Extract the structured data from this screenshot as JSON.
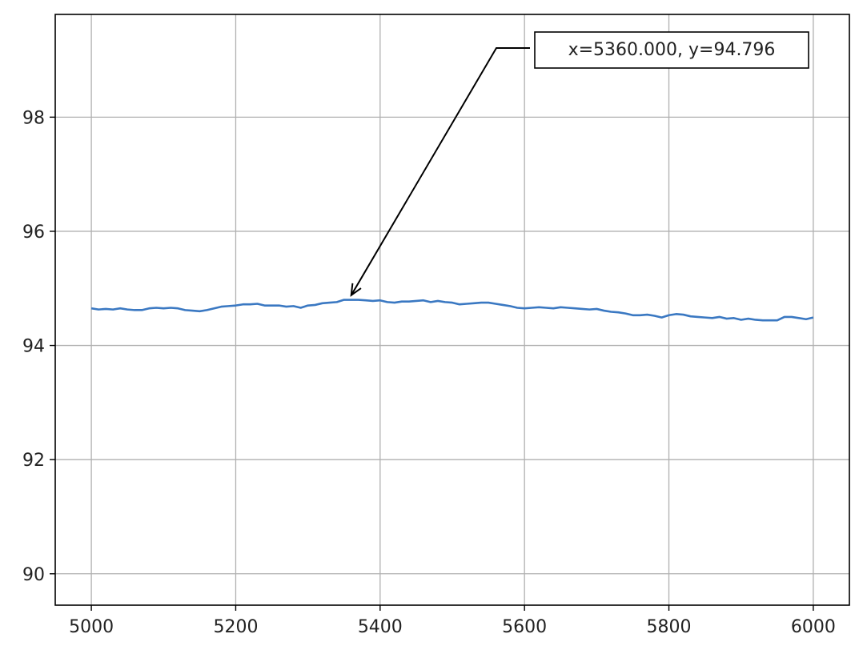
{
  "chart_data": {
    "type": "line",
    "title": "",
    "xlabel": "",
    "ylabel": "",
    "xlim": [
      4950,
      6050
    ],
    "ylim": [
      89.45,
      99.8
    ],
    "xticks": [
      5000,
      5200,
      5400,
      5600,
      5800,
      6000
    ],
    "yticks": [
      90,
      92,
      94,
      96,
      98
    ],
    "grid": true,
    "colors": {
      "line": "#3a78c2",
      "grid": "#b0b0b0",
      "axes": "#000000",
      "annotation": "#000000"
    },
    "series": [
      {
        "x": [
          5000,
          5010,
          5020,
          5030,
          5040,
          5050,
          5060,
          5070,
          5080,
          5090,
          5100,
          5110,
          5120,
          5130,
          5140,
          5150,
          5160,
          5170,
          5180,
          5190,
          5200,
          5210,
          5220,
          5230,
          5240,
          5250,
          5260,
          5270,
          5280,
          5290,
          5300,
          5310,
          5320,
          5330,
          5340,
          5350,
          5360,
          5370,
          5380,
          5390,
          5400,
          5410,
          5420,
          5430,
          5440,
          5450,
          5460,
          5470,
          5480,
          5490,
          5500,
          5510,
          5520,
          5530,
          5540,
          5550,
          5560,
          5570,
          5580,
          5590,
          5600,
          5610,
          5620,
          5630,
          5640,
          5650,
          5660,
          5670,
          5680,
          5690,
          5700,
          5710,
          5720,
          5730,
          5740,
          5750,
          5760,
          5770,
          5780,
          5790,
          5800,
          5810,
          5820,
          5830,
          5840,
          5850,
          5860,
          5870,
          5880,
          5890,
          5900,
          5910,
          5920,
          5930,
          5940,
          5950,
          5960,
          5970,
          5980,
          5990,
          6000
        ],
        "y": [
          94.65,
          94.63,
          94.64,
          94.63,
          94.65,
          94.63,
          94.62,
          94.62,
          94.65,
          94.66,
          94.65,
          94.66,
          94.65,
          94.62,
          94.61,
          94.6,
          94.62,
          94.65,
          94.68,
          94.69,
          94.7,
          94.72,
          94.72,
          94.73,
          94.7,
          94.7,
          94.7,
          94.68,
          94.69,
          94.66,
          94.7,
          94.71,
          94.74,
          94.75,
          94.76,
          94.8,
          94.8,
          94.8,
          94.79,
          94.78,
          94.79,
          94.76,
          94.75,
          94.77,
          94.77,
          94.78,
          94.79,
          94.76,
          94.78,
          94.76,
          94.75,
          94.72,
          94.73,
          94.74,
          94.75,
          94.75,
          94.73,
          94.71,
          94.69,
          94.66,
          94.65,
          94.66,
          94.67,
          94.66,
          94.65,
          94.67,
          94.66,
          94.65,
          94.64,
          94.63,
          94.64,
          94.61,
          94.59,
          94.58,
          94.56,
          94.53,
          94.53,
          94.54,
          94.52,
          94.49,
          94.53,
          94.55,
          94.54,
          94.51,
          94.5,
          94.49,
          94.48,
          94.5,
          94.47,
          94.48,
          94.45,
          94.47,
          94.45,
          94.44,
          94.44,
          94.44,
          94.5,
          94.5,
          94.48,
          94.46,
          94.49
        ]
      }
    ],
    "annotation": {
      "text": "x=5360.000, y=94.796",
      "point": {
        "x": 5360,
        "y": 94.796
      }
    }
  }
}
